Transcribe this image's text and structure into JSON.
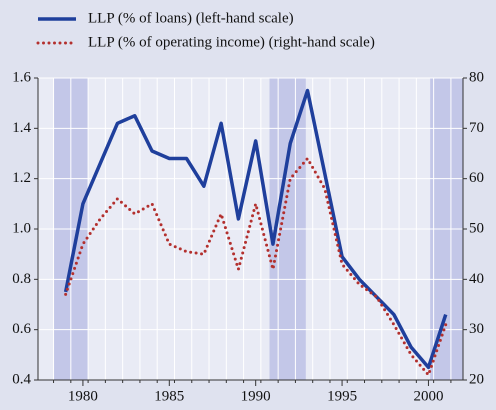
{
  "chart_data": {
    "type": "line",
    "x": [
      1979,
      1980,
      1981,
      1982,
      1983,
      1984,
      1985,
      1986,
      1987,
      1988,
      1989,
      1990,
      1991,
      1992,
      1993,
      1994,
      1995,
      1996,
      1997,
      1998,
      1999,
      2000,
      2001
    ],
    "series": [
      {
        "name": "LLP (% of loans) (left-hand scale)",
        "color": "#1f3f9c",
        "style": "solid",
        "values": [
          0.75,
          1.1,
          1.26,
          1.42,
          1.45,
          1.31,
          1.28,
          1.28,
          1.17,
          1.42,
          1.04,
          1.35,
          0.94,
          1.34,
          1.55,
          1.22,
          0.89,
          0.8,
          0.73,
          0.66,
          0.53,
          0.45,
          0.66
        ]
      },
      {
        "name": "LLP (% of operating income) (right-hand scale)",
        "color": "#b3302e",
        "style": "dotted",
        "axis": "y2",
        "values": [
          37,
          47,
          52,
          56,
          53,
          55,
          47,
          45.5,
          45,
          53,
          42,
          55,
          42,
          60,
          64,
          58,
          43,
          39,
          36.5,
          31,
          25,
          21,
          31
        ]
      }
    ],
    "xlim": [
      1977.4,
      2002
    ],
    "xticks": [
      1980,
      1985,
      1990,
      1995,
      2000
    ],
    "x_minor_ticks": [
      1978.3,
      1979.3,
      1980.3,
      1981.3,
      1982.3,
      1983.3,
      1984.3,
      1985.3,
      1986.3,
      1987.3,
      1988.3,
      1989.3,
      1990.3,
      1991.3,
      1992.3,
      1993.3,
      1994.3,
      1995.3,
      1996.3,
      1997.3,
      1998.3,
      1999.3,
      2000.3,
      2001.3
    ],
    "shaded_ranges": [
      [
        1978.3,
        1980.3
      ],
      [
        1990.8,
        1992.9
      ],
      [
        2000.1,
        2002
      ]
    ],
    "ylim": [
      0.4,
      1.6
    ],
    "yticks": [
      0.4,
      0.6,
      0.8,
      {
        "value": 1,
        "label": "1.0"
      },
      1.2,
      1.4,
      1.6
    ],
    "y2lim": [
      20,
      80
    ],
    "y2ticks": [
      20,
      30,
      40,
      50,
      60,
      70,
      80
    ],
    "grid": true
  }
}
